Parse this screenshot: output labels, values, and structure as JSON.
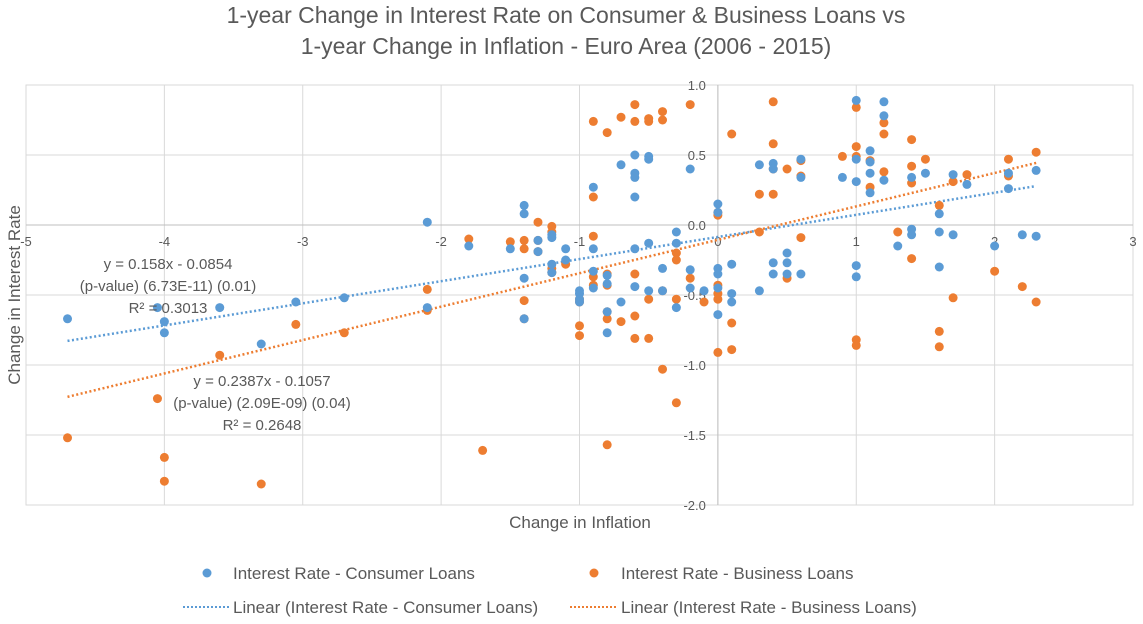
{
  "chart_data": {
    "type": "scatter",
    "title_line1": "1-year Change in Interest Rate on Consumer & Business Loans vs",
    "title_line2": "1-year Change in Inflation - Euro Area (2006 - 2015)",
    "xlabel": "Change in Inflation",
    "ylabel": "Change in Interest Rate",
    "xlim": [
      -5,
      3
    ],
    "ylim": [
      -2.0,
      1.0
    ],
    "x_ticks": [
      "-5",
      "-4",
      "-3",
      "-2",
      "-1",
      "0",
      "1",
      "2",
      "3"
    ],
    "y_ticks": [
      "1.0",
      "0.5",
      "0.0",
      "-0.5",
      "-1.0",
      "-1.5",
      "-2.0"
    ],
    "grid": "horizontal and vertical major gridlines",
    "legend_position": "bottom",
    "series": [
      {
        "name": "Interest Rate - Consumer Loans",
        "color": "#5B9BD5",
        "points": [
          [
            -4.7,
            -0.67
          ],
          [
            -4.05,
            -0.59
          ],
          [
            -4.0,
            -0.69
          ],
          [
            -4.0,
            -0.77
          ],
          [
            -3.6,
            -0.59
          ],
          [
            -3.3,
            -0.85
          ],
          [
            -3.05,
            -0.55
          ],
          [
            -2.7,
            -0.52
          ],
          [
            -2.1,
            0.02
          ],
          [
            -2.1,
            -0.59
          ],
          [
            -1.8,
            -0.15
          ],
          [
            -1.5,
            -0.17
          ],
          [
            -1.4,
            0.14
          ],
          [
            -1.4,
            0.08
          ],
          [
            -1.4,
            -0.38
          ],
          [
            -1.4,
            -0.67
          ],
          [
            -1.3,
            -0.11
          ],
          [
            -1.3,
            -0.19
          ],
          [
            -1.2,
            -0.07
          ],
          [
            -1.2,
            -0.09
          ],
          [
            -1.2,
            -0.28
          ],
          [
            -1.2,
            -0.34
          ],
          [
            -1.1,
            -0.17
          ],
          [
            -1.1,
            -0.25
          ],
          [
            -1.0,
            -0.47
          ],
          [
            -1.0,
            -0.49
          ],
          [
            -1.0,
            -0.53
          ],
          [
            -1.0,
            -0.55
          ],
          [
            -0.9,
            0.27
          ],
          [
            -0.9,
            -0.17
          ],
          [
            -0.9,
            -0.33
          ],
          [
            -0.9,
            -0.45
          ],
          [
            -0.8,
            -0.36
          ],
          [
            -0.8,
            -0.42
          ],
          [
            -0.8,
            -0.62
          ],
          [
            -0.8,
            -0.77
          ],
          [
            -0.7,
            0.43
          ],
          [
            -0.7,
            -0.55
          ],
          [
            -0.6,
            0.5
          ],
          [
            -0.6,
            0.37
          ],
          [
            -0.6,
            0.34
          ],
          [
            -0.6,
            0.2
          ],
          [
            -0.6,
            -0.17
          ],
          [
            -0.6,
            -0.44
          ],
          [
            -0.5,
            0.49
          ],
          [
            -0.5,
            0.47
          ],
          [
            -0.5,
            -0.13
          ],
          [
            -0.5,
            -0.47
          ],
          [
            -0.4,
            -0.31
          ],
          [
            -0.4,
            -0.47
          ],
          [
            -0.3,
            -0.05
          ],
          [
            -0.3,
            -0.13
          ],
          [
            -0.3,
            -0.59
          ],
          [
            -0.2,
            0.4
          ],
          [
            -0.2,
            -0.32
          ],
          [
            -0.2,
            -0.45
          ],
          [
            -0.1,
            -0.47
          ],
          [
            0.0,
            0.15
          ],
          [
            0.0,
            0.09
          ],
          [
            0.0,
            -0.31
          ],
          [
            0.0,
            -0.35
          ],
          [
            0.0,
            -0.45
          ],
          [
            0.0,
            -0.64
          ],
          [
            0.1,
            -0.28
          ],
          [
            0.1,
            -0.49
          ],
          [
            0.1,
            -0.55
          ],
          [
            0.3,
            0.43
          ],
          [
            0.3,
            -0.47
          ],
          [
            0.4,
            0.44
          ],
          [
            0.4,
            0.4
          ],
          [
            0.4,
            -0.27
          ],
          [
            0.4,
            -0.35
          ],
          [
            0.5,
            -0.2
          ],
          [
            0.5,
            -0.27
          ],
          [
            0.5,
            -0.35
          ],
          [
            0.6,
            0.47
          ],
          [
            0.6,
            0.34
          ],
          [
            0.6,
            -0.35
          ],
          [
            0.9,
            0.34
          ],
          [
            1.0,
            0.89
          ],
          [
            1.0,
            0.47
          ],
          [
            1.0,
            0.31
          ],
          [
            1.0,
            -0.29
          ],
          [
            1.0,
            -0.37
          ],
          [
            1.1,
            0.53
          ],
          [
            1.1,
            0.45
          ],
          [
            1.1,
            0.37
          ],
          [
            1.1,
            0.23
          ],
          [
            1.2,
            0.88
          ],
          [
            1.2,
            0.78
          ],
          [
            1.2,
            0.32
          ],
          [
            1.3,
            -0.15
          ],
          [
            1.4,
            0.34
          ],
          [
            1.4,
            -0.03
          ],
          [
            1.4,
            -0.07
          ],
          [
            1.5,
            0.37
          ],
          [
            1.6,
            0.08
          ],
          [
            1.6,
            -0.05
          ],
          [
            1.6,
            -0.3
          ],
          [
            1.7,
            0.36
          ],
          [
            1.7,
            -0.07
          ],
          [
            1.8,
            0.29
          ],
          [
            2.0,
            -0.15
          ],
          [
            2.1,
            0.37
          ],
          [
            2.1,
            0.26
          ],
          [
            2.2,
            -0.07
          ],
          [
            2.3,
            0.39
          ],
          [
            2.3,
            -0.08
          ]
        ]
      },
      {
        "name": "Interest Rate - Business Loans",
        "color": "#ED7D31",
        "points": [
          [
            -4.7,
            -1.52
          ],
          [
            -4.05,
            -1.24
          ],
          [
            -4.0,
            -1.66
          ],
          [
            -4.0,
            -1.83
          ],
          [
            -3.6,
            -0.93
          ],
          [
            -3.3,
            -1.85
          ],
          [
            -3.05,
            -0.71
          ],
          [
            -2.7,
            -0.77
          ],
          [
            -2.1,
            -0.46
          ],
          [
            -2.1,
            -0.61
          ],
          [
            -1.8,
            -0.1
          ],
          [
            -1.7,
            -1.61
          ],
          [
            -1.5,
            -0.12
          ],
          [
            -1.4,
            -0.11
          ],
          [
            -1.4,
            -0.17
          ],
          [
            -1.4,
            -0.54
          ],
          [
            -1.4,
            -0.67
          ],
          [
            -1.3,
            0.02
          ],
          [
            -1.3,
            -0.11
          ],
          [
            -1.3,
            -0.19
          ],
          [
            -1.2,
            -0.01
          ],
          [
            -1.2,
            -0.05
          ],
          [
            -1.2,
            -0.31
          ],
          [
            -1.2,
            -0.34
          ],
          [
            -1.1,
            -0.28
          ],
          [
            -1.0,
            -0.53
          ],
          [
            -1.0,
            -0.55
          ],
          [
            -1.0,
            -0.72
          ],
          [
            -1.0,
            -0.79
          ],
          [
            -0.9,
            0.74
          ],
          [
            -0.9,
            0.2
          ],
          [
            -0.9,
            -0.08
          ],
          [
            -0.9,
            -0.37
          ],
          [
            -0.9,
            -0.43
          ],
          [
            -0.8,
            0.66
          ],
          [
            -0.8,
            -0.35
          ],
          [
            -0.8,
            -0.43
          ],
          [
            -0.8,
            -0.62
          ],
          [
            -0.8,
            -0.67
          ],
          [
            -0.8,
            -1.57
          ],
          [
            -0.7,
            0.77
          ],
          [
            -0.7,
            -0.69
          ],
          [
            -0.6,
            0.86
          ],
          [
            -0.6,
            0.74
          ],
          [
            -0.6,
            -0.35
          ],
          [
            -0.6,
            -0.65
          ],
          [
            -0.6,
            -0.81
          ],
          [
            -0.5,
            0.76
          ],
          [
            -0.5,
            0.74
          ],
          [
            -0.5,
            -0.53
          ],
          [
            -0.5,
            -0.81
          ],
          [
            -0.4,
            0.81
          ],
          [
            -0.4,
            0.75
          ],
          [
            -0.4,
            -0.47
          ],
          [
            -0.4,
            -1.03
          ],
          [
            -0.3,
            -0.2
          ],
          [
            -0.3,
            -0.25
          ],
          [
            -0.3,
            -0.53
          ],
          [
            -0.3,
            -1.27
          ],
          [
            -0.2,
            0.86
          ],
          [
            -0.2,
            -0.38
          ],
          [
            -0.1,
            -0.55
          ],
          [
            0.0,
            0.09
          ],
          [
            0.0,
            0.07
          ],
          [
            0.0,
            -0.43
          ],
          [
            0.0,
            -0.49
          ],
          [
            0.0,
            -0.53
          ],
          [
            0.0,
            -0.91
          ],
          [
            0.1,
            0.65
          ],
          [
            0.1,
            -0.7
          ],
          [
            0.1,
            -0.89
          ],
          [
            0.3,
            0.22
          ],
          [
            0.3,
            -0.05
          ],
          [
            0.4,
            0.88
          ],
          [
            0.4,
            0.58
          ],
          [
            0.4,
            0.4
          ],
          [
            0.4,
            0.22
          ],
          [
            0.5,
            0.4
          ],
          [
            0.5,
            -0.38
          ],
          [
            0.6,
            0.46
          ],
          [
            0.6,
            0.35
          ],
          [
            0.6,
            -0.09
          ],
          [
            0.9,
            0.49
          ],
          [
            1.0,
            0.84
          ],
          [
            1.0,
            0.56
          ],
          [
            1.0,
            0.49
          ],
          [
            1.0,
            -0.82
          ],
          [
            1.0,
            -0.86
          ],
          [
            1.1,
            0.46
          ],
          [
            1.1,
            0.27
          ],
          [
            1.2,
            0.73
          ],
          [
            1.2,
            0.65
          ],
          [
            1.2,
            0.38
          ],
          [
            1.3,
            -0.05
          ],
          [
            1.4,
            0.61
          ],
          [
            1.4,
            0.42
          ],
          [
            1.4,
            0.3
          ],
          [
            1.4,
            -0.24
          ],
          [
            1.5,
            0.47
          ],
          [
            1.6,
            0.14
          ],
          [
            1.6,
            -0.76
          ],
          [
            1.6,
            -0.87
          ],
          [
            1.7,
            0.31
          ],
          [
            1.7,
            -0.52
          ],
          [
            1.8,
            0.36
          ],
          [
            2.0,
            -0.33
          ],
          [
            2.1,
            0.47
          ],
          [
            2.1,
            0.35
          ],
          [
            2.2,
            -0.44
          ],
          [
            2.3,
            0.52
          ],
          [
            2.3,
            -0.55
          ]
        ]
      }
    ],
    "trendlines": [
      {
        "name": "Linear (Interest Rate - Consumer Loans)",
        "color": "#5B9BD5",
        "slope": 0.158,
        "intercept": -0.0854,
        "x_range": [
          -4.7,
          2.3
        ],
        "equation": "y = 0.158x - 0.0854",
        "pvalue": "(p-value) (6.73E-11) (0.01)",
        "r2": "R² = 0.3013"
      },
      {
        "name": "Linear (Interest Rate - Business Loans)",
        "color": "#ED7D31",
        "slope": 0.2387,
        "intercept": -0.1057,
        "x_range": [
          -4.7,
          2.3
        ],
        "equation": "y = 0.2387x - 0.1057",
        "pvalue": "(p-value) (2.09E-09) (0.04)",
        "r2": "R² = 0.2648"
      }
    ]
  }
}
